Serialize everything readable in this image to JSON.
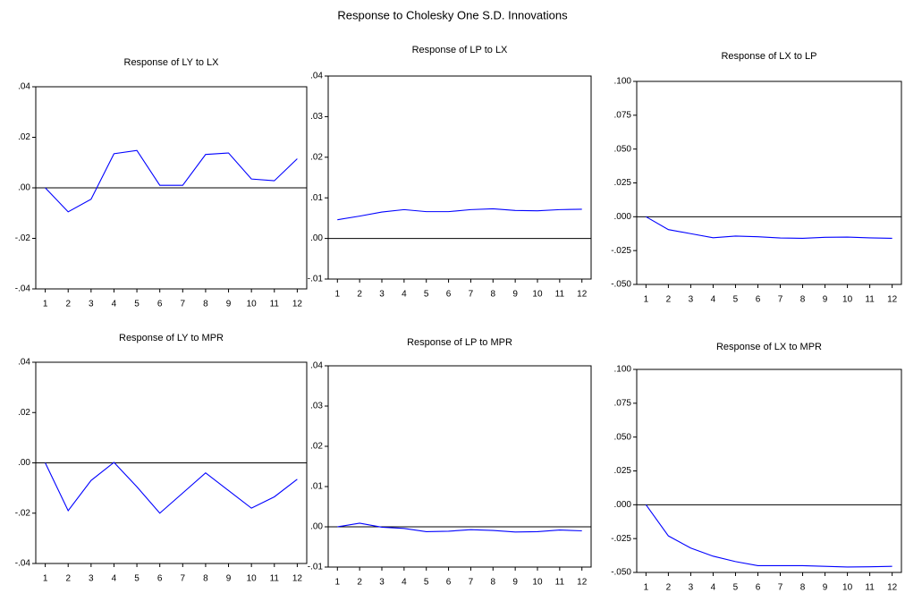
{
  "title": "Response to Cholesky One S.D. Innovations",
  "chart_data": [
    {
      "type": "line",
      "title": "Response of LY to LX",
      "categories": [
        "1",
        "2",
        "3",
        "4",
        "5",
        "6",
        "7",
        "8",
        "9",
        "10",
        "11",
        "12"
      ],
      "series": [
        {
          "color": "#0000ff",
          "values": [
            0,
            -0.0095,
            -0.0045,
            0.0135,
            0.0148,
            0.001,
            0.001,
            0.0132,
            0.0138,
            0.0035,
            0.0028,
            0.0115
          ]
        }
      ],
      "ylim": [
        -0.04,
        0.04
      ],
      "yticks": [
        {
          "value": -0.04,
          "label": "-.04"
        },
        {
          "value": -0.02,
          "label": "-.02"
        },
        {
          "value": 0,
          "label": ".00"
        },
        {
          "value": 0.02,
          "label": ".02"
        },
        {
          "value": 0.04,
          "label": ".04"
        }
      ]
    },
    {
      "type": "line",
      "title": "Response of LP to LX",
      "categories": [
        "1",
        "2",
        "3",
        "4",
        "5",
        "6",
        "7",
        "8",
        "9",
        "10",
        "11",
        "12"
      ],
      "series": [
        {
          "color": "#0000ff",
          "values": [
            0.0046,
            0.0055,
            0.0065,
            0.0071,
            0.0066,
            0.0066,
            0.0071,
            0.0073,
            0.0069,
            0.0068,
            0.0071,
            0.0072
          ]
        }
      ],
      "ylim": [
        -0.01,
        0.04
      ],
      "yticks": [
        {
          "value": -0.01,
          "label": "-.01"
        },
        {
          "value": 0,
          "label": ".00"
        },
        {
          "value": 0.01,
          "label": ".01"
        },
        {
          "value": 0.02,
          "label": ".02"
        },
        {
          "value": 0.03,
          "label": ".03"
        },
        {
          "value": 0.04,
          "label": ".04"
        }
      ]
    },
    {
      "type": "line",
      "title": "Response of LX to LP",
      "categories": [
        "1",
        "2",
        "3",
        "4",
        "5",
        "6",
        "7",
        "8",
        "9",
        "10",
        "11",
        "12"
      ],
      "series": [
        {
          "color": "#0000ff",
          "values": [
            0,
            -0.0095,
            -0.0125,
            -0.0155,
            -0.0143,
            -0.0148,
            -0.0157,
            -0.0159,
            -0.0152,
            -0.015,
            -0.0156,
            -0.0159
          ]
        }
      ],
      "ylim": [
        -0.05,
        0.1
      ],
      "yticks": [
        {
          "value": -0.05,
          "label": "-.050"
        },
        {
          "value": -0.025,
          "label": "-.025"
        },
        {
          "value": 0,
          "label": ".000"
        },
        {
          "value": 0.025,
          "label": ".025"
        },
        {
          "value": 0.05,
          "label": ".050"
        },
        {
          "value": 0.075,
          "label": ".075"
        },
        {
          "value": 0.1,
          "label": ".100"
        }
      ]
    },
    {
      "type": "line",
      "title": "Response of LY to MPR",
      "categories": [
        "1",
        "2",
        "3",
        "4",
        "5",
        "6",
        "7",
        "8",
        "9",
        "10",
        "11",
        "12"
      ],
      "series": [
        {
          "color": "#0000ff",
          "values": [
            0,
            -0.019,
            -0.007,
            0.0002,
            -0.0095,
            -0.02,
            -0.012,
            -0.004,
            -0.011,
            -0.018,
            -0.0135,
            -0.0065
          ]
        }
      ],
      "ylim": [
        -0.04,
        0.04
      ],
      "yticks": [
        {
          "value": -0.04,
          "label": "-.04"
        },
        {
          "value": -0.02,
          "label": "-.02"
        },
        {
          "value": 0,
          "label": ".00"
        },
        {
          "value": 0.02,
          "label": ".02"
        },
        {
          "value": 0.04,
          "label": ".04"
        }
      ]
    },
    {
      "type": "line",
      "title": "Response of LP to MPR",
      "categories": [
        "1",
        "2",
        "3",
        "4",
        "5",
        "6",
        "7",
        "8",
        "9",
        "10",
        "11",
        "12"
      ],
      "series": [
        {
          "color": "#0000ff",
          "values": [
            0,
            0.0009,
            -0.0001,
            -0.0004,
            -0.0012,
            -0.0011,
            -0.0007,
            -0.0009,
            -0.0013,
            -0.0012,
            -0.0008,
            -0.001
          ]
        }
      ],
      "ylim": [
        -0.01,
        0.04
      ],
      "yticks": [
        {
          "value": -0.01,
          "label": "-.01"
        },
        {
          "value": 0,
          "label": ".00"
        },
        {
          "value": 0.01,
          "label": ".01"
        },
        {
          "value": 0.02,
          "label": ".02"
        },
        {
          "value": 0.03,
          "label": ".03"
        },
        {
          "value": 0.04,
          "label": ".04"
        }
      ]
    },
    {
      "type": "line",
      "title": "Response of LX to MPR",
      "categories": [
        "1",
        "2",
        "3",
        "4",
        "5",
        "6",
        "7",
        "8",
        "9",
        "10",
        "11",
        "12"
      ],
      "series": [
        {
          "color": "#0000ff",
          "values": [
            0,
            -0.023,
            -0.032,
            -0.038,
            -0.042,
            -0.045,
            -0.045,
            -0.045,
            -0.0455,
            -0.046,
            -0.0458,
            -0.0455
          ]
        }
      ],
      "ylim": [
        -0.05,
        0.1
      ],
      "yticks": [
        {
          "value": -0.05,
          "label": "-.050"
        },
        {
          "value": -0.025,
          "label": "-.025"
        },
        {
          "value": 0,
          "label": ".000"
        },
        {
          "value": 0.025,
          "label": ".025"
        },
        {
          "value": 0.05,
          "label": ".050"
        },
        {
          "value": 0.075,
          "label": ".075"
        },
        {
          "value": 0.1,
          "label": ".100"
        }
      ]
    }
  ]
}
